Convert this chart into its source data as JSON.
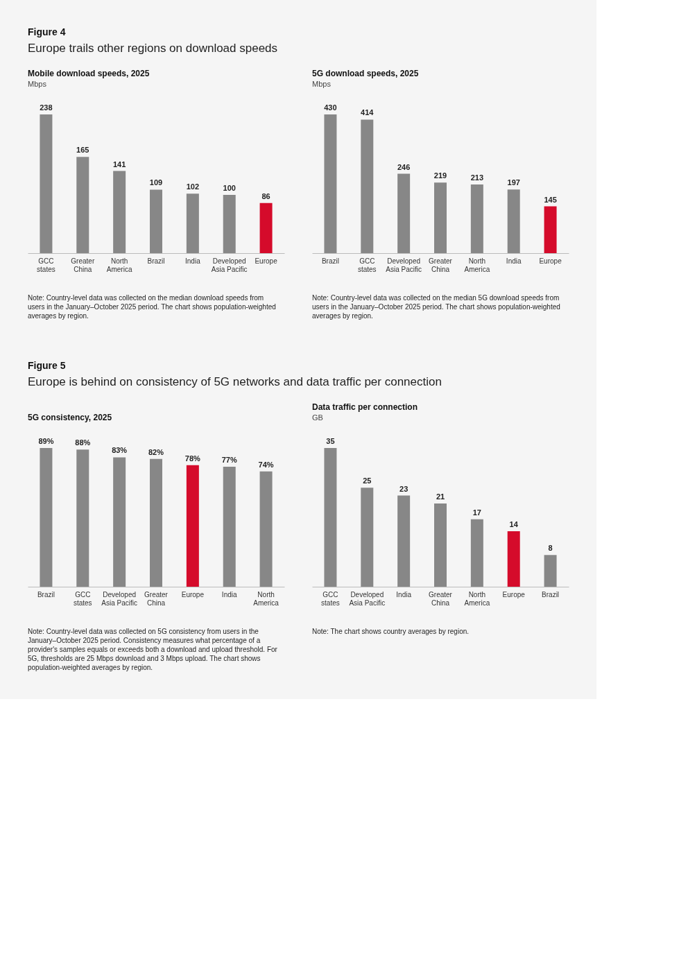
{
  "chart_data": [
    {
      "type": "bar",
      "title": "Mobile download speeds, 2025",
      "subtitle": "Mbps",
      "categories": [
        "GCC states",
        "Greater China",
        "North America",
        "Brazil",
        "India",
        "Developed Asia Pacific",
        "Europe"
      ],
      "values": [
        238,
        165,
        141,
        109,
        102,
        100,
        86
      ],
      "colors": [
        "#878787",
        "#878787",
        "#878787",
        "#878787",
        "#878787",
        "#878787",
        "#d50b2b"
      ],
      "data_labels": true,
      "annotations": [
        "Figure 4",
        "Europe trails other regions on download speeds",
        "Note: Country-level data was collected on the median download speeds from users in the January–October 2025 period. The chart shows population-weighted averages by region."
      ]
    },
    {
      "type": "bar",
      "title": "5G download speeds, 2025",
      "subtitle": "Mbps",
      "categories": [
        "Brazil",
        "GCC states",
        "Developed Asia Pacific",
        "Greater China",
        "North America",
        "India",
        "Europe"
      ],
      "values": [
        430,
        414,
        246,
        219,
        213,
        197,
        145
      ],
      "colors": [
        "#878787",
        "#878787",
        "#878787",
        "#878787",
        "#878787",
        "#878787",
        "#d50b2b"
      ],
      "data_labels": true,
      "annotations": [
        "Note: Country-level data was collected on the median 5G download speeds from users in the January–October 2025 period. The chart shows population-weighted averages by region."
      ]
    },
    {
      "type": "bar",
      "title": "5G consistency, 2025",
      "categories": [
        "Brazil",
        "GCC states",
        "Developed Asia Pacific",
        "Greater China",
        "Europe",
        "India",
        "North America"
      ],
      "values": [
        89,
        88,
        83,
        82,
        78,
        77,
        74
      ],
      "value_labels": [
        "89%",
        "88%",
        "83%",
        "82%",
        "78%",
        "77%",
        "74%"
      ],
      "colors": [
        "#878787",
        "#878787",
        "#878787",
        "#878787",
        "#d50b2b",
        "#878787",
        "#878787"
      ],
      "annotations": [
        "Figure 5",
        "Europe is behind on consistency of 5G networks and data traffic per connection",
        "Note: Country-level data was collected on 5G consistency from users in the January–October 2025 period. Consistency measures what percentage of a provider's samples equals or exceeds both a download and upload threshold. For 5G, thresholds are 25 Mbps download and 3 Mbps upload. The chart shows population-weighted averages by region."
      ]
    },
    {
      "type": "bar",
      "title": "Data traffic per connection",
      "subtitle": "GB",
      "categories": [
        "GCC states",
        "Developed Asia Pacific",
        "India",
        "Greater China",
        "North America",
        "Europe",
        "Brazil"
      ],
      "values": [
        35,
        25,
        23,
        21,
        17,
        14,
        8
      ],
      "colors": [
        "#878787",
        "#878787",
        "#878787",
        "#878787",
        "#878787",
        "#d50b2b",
        "#878787"
      ],
      "data_labels": true,
      "annotations": [
        "Note: The chart shows country averages by region."
      ]
    }
  ]
}
